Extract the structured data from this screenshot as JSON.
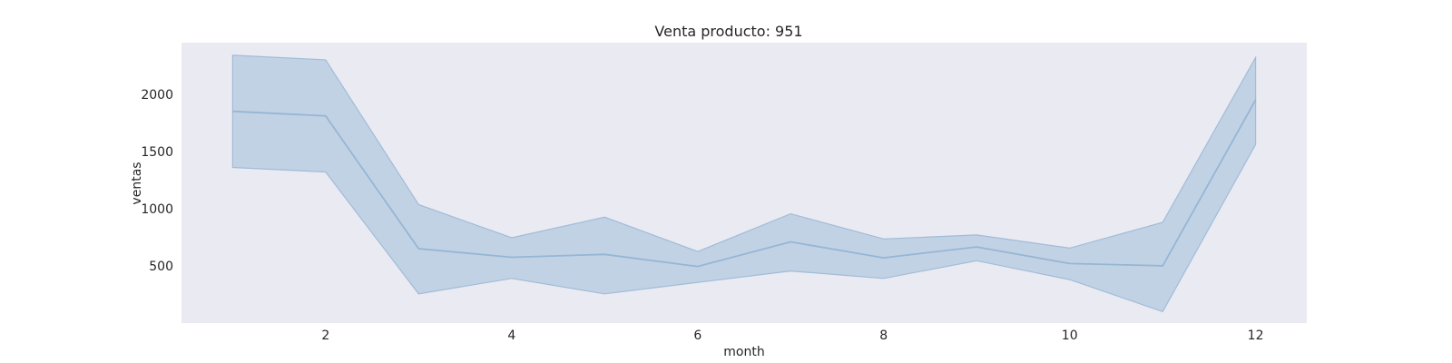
{
  "chart_data": {
    "type": "line",
    "title": "Venta producto: 951",
    "xlabel": "month",
    "ylabel": "ventas",
    "xlim": [
      0.45,
      12.55
    ],
    "ylim": [
      0,
      2450
    ],
    "xticks": [
      2,
      4,
      6,
      8,
      10,
      12
    ],
    "yticks": [
      500,
      1000,
      1500,
      2000
    ],
    "grid": false,
    "legend": "none",
    "colors": {
      "plot_background": "#eaeaf2",
      "band": "#a9c3dd",
      "line": "#95b6d4"
    },
    "x": [
      1,
      2,
      3,
      4,
      5,
      6,
      7,
      8,
      9,
      10,
      11,
      12
    ],
    "mean": [
      1850,
      1810,
      650,
      575,
      600,
      495,
      710,
      570,
      665,
      520,
      500,
      1950
    ],
    "lower": [
      1360,
      1320,
      255,
      390,
      255,
      355,
      455,
      390,
      545,
      380,
      100,
      1560
    ],
    "upper": [
      2340,
      2300,
      1035,
      745,
      925,
      625,
      955,
      735,
      770,
      655,
      880,
      2320
    ]
  }
}
